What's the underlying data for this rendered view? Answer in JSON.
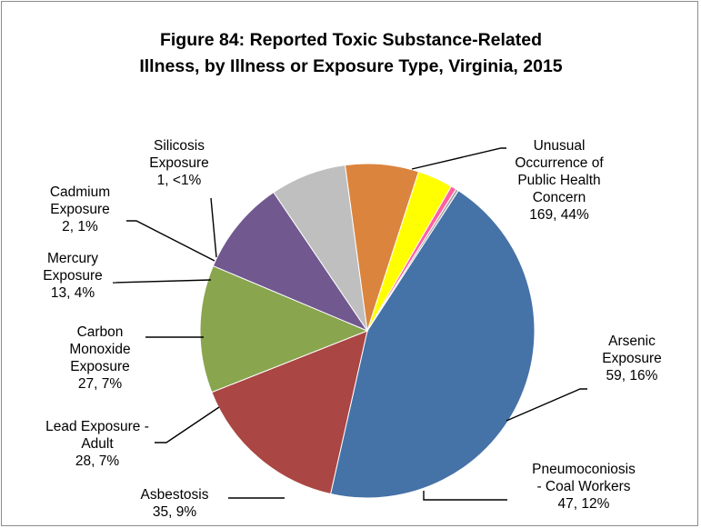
{
  "chart_data": {
    "type": "pie",
    "title": "Figure 84: Reported Toxic Substance-Related Illness, by Illness or Exposure Type, Virginia, 2015",
    "title_lines": [
      "Figure 84: Reported Toxic Substance-Related",
      "Illness, by Illness or Exposure Type, Virginia, 2015"
    ],
    "start_angle_deg": 57,
    "direction": "clockwise",
    "slices": [
      {
        "label": "Unusual Occurrence of Public Health Concern",
        "value": 169,
        "percent": "44%",
        "color": "#4572a7",
        "label_lines": [
          "Unusual",
          "Occurrence of",
          "Public Health",
          "Concern",
          "169, 44%"
        ]
      },
      {
        "label": "Arsenic Exposure",
        "value": 59,
        "percent": "16%",
        "color": "#aa4643",
        "label_lines": [
          "Arsenic",
          "Exposure",
          "59, 16%"
        ]
      },
      {
        "label": "Pneumoconiosis - Coal Workers",
        "value": 47,
        "percent": "12%",
        "color": "#89a54e",
        "label_lines": [
          "Pneumoconiosis",
          "- Coal Workers",
          "47, 12%"
        ]
      },
      {
        "label": "Asbestosis",
        "value": 35,
        "percent": "9%",
        "color": "#71588f",
        "label_lines": [
          "Asbestosis",
          "35, 9%"
        ]
      },
      {
        "label": "Lead Exposure - Adult",
        "value": 28,
        "percent": "7%",
        "color": "#bfbfbf",
        "label_lines": [
          "Lead Exposure -",
          "Adult",
          "28, 7%"
        ]
      },
      {
        "label": "Carbon Monoxide Exposure",
        "value": 27,
        "percent": "7%",
        "color": "#db843d",
        "label_lines": [
          "Carbon",
          "Monoxide",
          "Exposure",
          "27, 7%"
        ]
      },
      {
        "label": "Mercury Exposure",
        "value": 13,
        "percent": "4%",
        "color": "#ffff00",
        "label_lines": [
          "Mercury",
          "Exposure",
          "13, 4%"
        ]
      },
      {
        "label": "Cadmium Exposure",
        "value": 2,
        "percent": "1%",
        "color": "#ff5fa2",
        "label_lines": [
          "Cadmium",
          "Exposure",
          "2, 1%"
        ]
      },
      {
        "label": "Silicosis Exposure",
        "value": 1,
        "percent": "<1%",
        "color": "#a5a5a5",
        "label_lines": [
          "Silicosis",
          "Exposure",
          "1, <1%"
        ]
      }
    ]
  }
}
